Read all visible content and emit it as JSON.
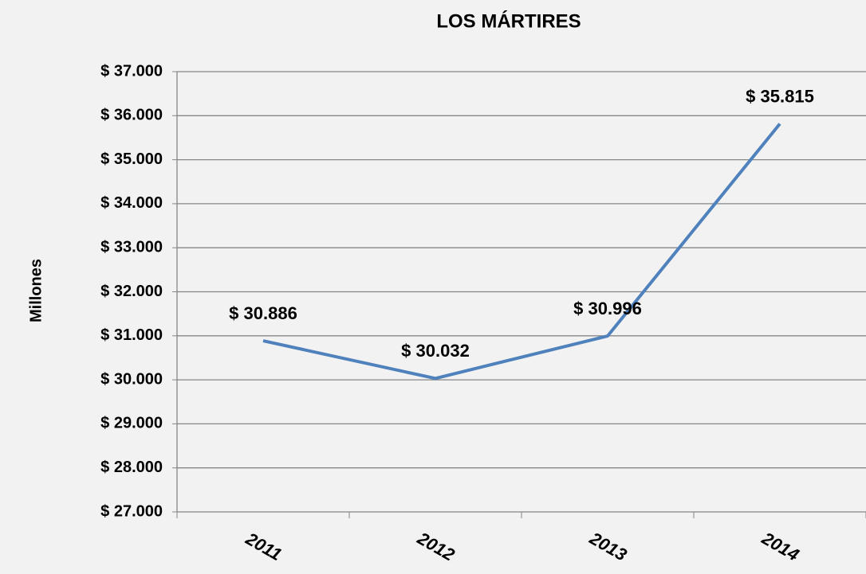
{
  "chart_data": {
    "type": "line",
    "title": "LOS MÁRTIRES",
    "ylabel": "Millones",
    "categories": [
      "2011",
      "2012",
      "2013",
      "2014"
    ],
    "series": [
      {
        "name": "Los Mártires",
        "color": "#4f81bd",
        "values": [
          30886,
          30032,
          30996,
          35815
        ],
        "value_labels": [
          "$ 30.886",
          "$ 30.032",
          "$ 30.996",
          "$ 35.815"
        ]
      }
    ],
    "ylim": [
      27000,
      37000
    ],
    "yticks": [
      {
        "value": 27000,
        "label": "$ 27.000"
      },
      {
        "value": 28000,
        "label": "$ 28.000"
      },
      {
        "value": 29000,
        "label": "$ 29.000"
      },
      {
        "value": 30000,
        "label": "$ 30.000"
      },
      {
        "value": 31000,
        "label": "$ 31.000"
      },
      {
        "value": 32000,
        "label": "$ 32.000"
      },
      {
        "value": 33000,
        "label": "$ 33.000"
      },
      {
        "value": 34000,
        "label": "$ 34.000"
      },
      {
        "value": 35000,
        "label": "$ 35.000"
      },
      {
        "value": 36000,
        "label": "$ 36.000"
      },
      {
        "value": 37000,
        "label": "$ 37.000"
      }
    ],
    "grid": true
  }
}
